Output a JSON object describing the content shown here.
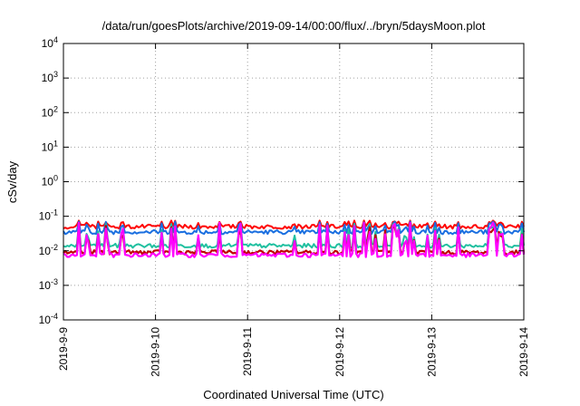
{
  "chart_data": {
    "type": "line",
    "title": "/data/run/goesPlots/archive/2019-09-14/00:00/flux/../bryn/5daysMoon.plot",
    "xlabel": "Coordinated Universal Time (UTC)",
    "ylabel": "cSv/day",
    "y_scale": "log",
    "ylim": [
      0.0001,
      10000
    ],
    "y_ticks": [
      {
        "value": 0.0001,
        "base": "10",
        "exp": "-4"
      },
      {
        "value": 0.001,
        "base": "10",
        "exp": "-3"
      },
      {
        "value": 0.01,
        "base": "10",
        "exp": "-2"
      },
      {
        "value": 0.1,
        "base": "10",
        "exp": "-1"
      },
      {
        "value": 1,
        "base": "10",
        "exp": "0"
      },
      {
        "value": 10,
        "base": "10",
        "exp": "1"
      },
      {
        "value": 100,
        "base": "10",
        "exp": "2"
      },
      {
        "value": 1000,
        "base": "10",
        "exp": "3"
      },
      {
        "value": 10000,
        "base": "10",
        "exp": "4"
      }
    ],
    "xlim": [
      "2019-09-09",
      "2019-09-14"
    ],
    "x_ticks": [
      {
        "value": "2019-09-09",
        "label": "2019-9-9"
      },
      {
        "value": "2019-09-10",
        "label": "2019-9-10"
      },
      {
        "value": "2019-09-11",
        "label": "2019-9-11"
      },
      {
        "value": "2019-09-12",
        "label": "2019-9-12"
      },
      {
        "value": "2019-09-13",
        "label": "2019-9-13"
      },
      {
        "value": "2019-09-14",
        "label": "2019-9-14"
      }
    ],
    "grid": true,
    "series": [
      {
        "color": "#ff0000",
        "baseline": 0.05,
        "spike": 0.075
      },
      {
        "color": "#1a6fe0",
        "baseline": 0.035,
        "spike": 0.07
      },
      {
        "color": "#20c0a0",
        "baseline": 0.014,
        "spike": 0.06
      },
      {
        "color": "#c00000",
        "baseline": 0.009,
        "spike": 0.055
      },
      {
        "color": "#ff00ff",
        "baseline": 0.0075,
        "spike": 0.065
      }
    ]
  }
}
